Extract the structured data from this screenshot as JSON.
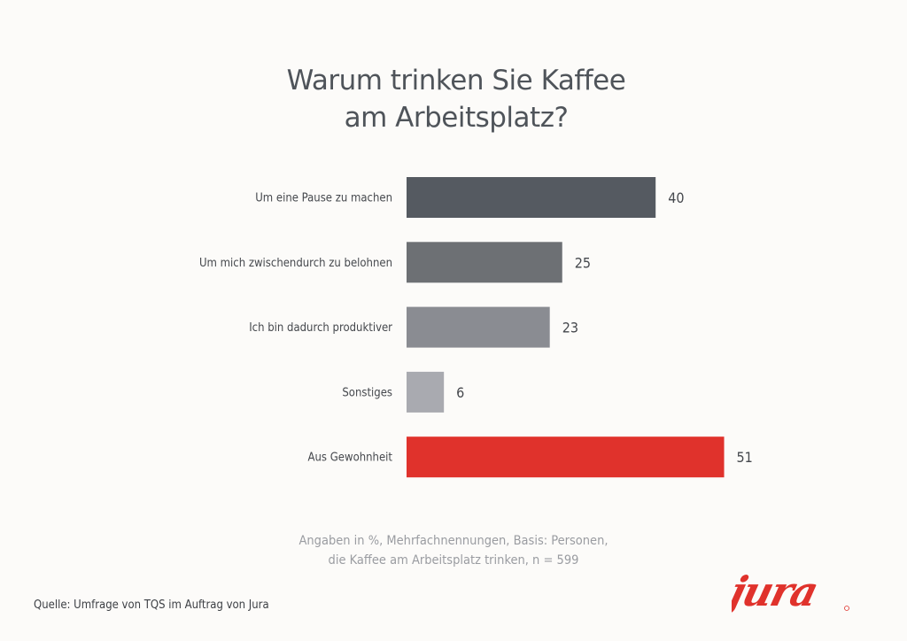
{
  "chart_data": {
    "type": "bar",
    "orientation": "horizontal",
    "title": "Warum trinken Sie Kaffee am Arbeitsplatz?",
    "title_lines": [
      "Warum trinken Sie Kaffee",
      "am Arbeitsplatz?"
    ],
    "categories": [
      "Um eine Pause zu machen",
      "Um mich zwischendurch zu belohnen",
      "Ich bin dadurch produktiver",
      "Sonstiges",
      "Aus Gewohnheit"
    ],
    "values": [
      40,
      25,
      23,
      6,
      51
    ],
    "colors": [
      "#555a61",
      "#6d7074",
      "#8a8c92",
      "#a9aab0",
      "#e0322c"
    ],
    "xlim": [
      0,
      60
    ],
    "grid": false,
    "data_labels": true,
    "unit": "%"
  },
  "note_lines": [
    "Angaben in %, Mehrfachnennungen, Basis: Personen,",
    "die Kaffee am Arbeitsplatz trinken, n = 599"
  ],
  "source": "Quelle: Umfrage von TQS im Auftrag von Jura",
  "logo": {
    "text": "jura",
    "color": "#e0322c"
  }
}
